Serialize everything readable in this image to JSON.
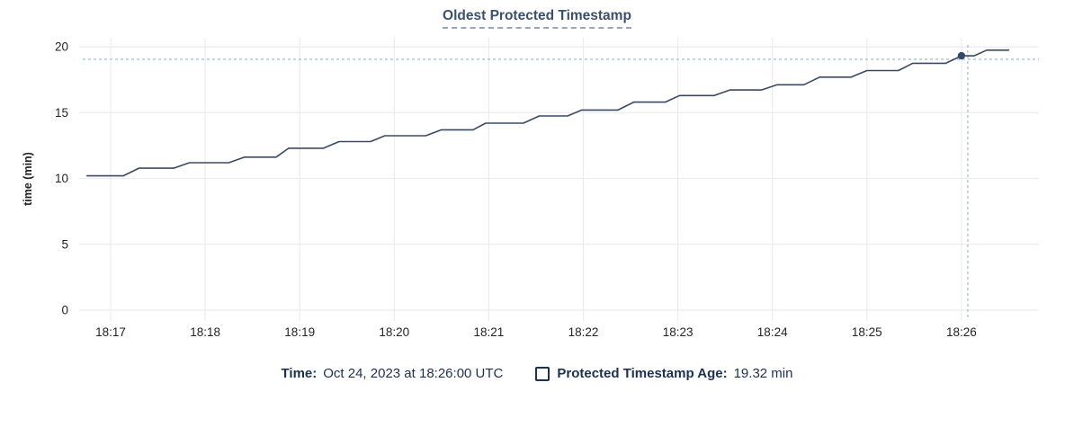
{
  "chart_data": {
    "type": "line",
    "title": "Oldest Protected Timestamp",
    "xlabel": "",
    "ylabel": "time (min)",
    "ylim": [
      0,
      20
    ],
    "yticks": [
      0,
      5,
      10,
      15,
      20
    ],
    "xtick_labels": [
      "18:17",
      "18:18",
      "18:19",
      "18:20",
      "18:21",
      "18:22",
      "18:23",
      "18:24",
      "18:25",
      "18:26"
    ],
    "x_unit": "seconds since 18:17:00",
    "grid": true,
    "legend_position": "bottom",
    "series": [
      {
        "name": "Protected Timestamp Age",
        "color": "#3b4a62",
        "points": [
          [
            -15,
            10.2
          ],
          [
            8,
            10.2
          ],
          [
            18,
            10.78
          ],
          [
            40,
            10.78
          ],
          [
            50,
            11.2
          ],
          [
            75,
            11.2
          ],
          [
            85,
            11.62
          ],
          [
            105,
            11.62
          ],
          [
            113,
            12.3
          ],
          [
            135,
            12.3
          ],
          [
            145,
            12.8
          ],
          [
            165,
            12.8
          ],
          [
            174,
            13.25
          ],
          [
            200,
            13.25
          ],
          [
            210,
            13.7
          ],
          [
            230,
            13.7
          ],
          [
            238,
            14.2
          ],
          [
            262,
            14.2
          ],
          [
            272,
            14.75
          ],
          [
            290,
            14.75
          ],
          [
            299,
            15.2
          ],
          [
            322,
            15.2
          ],
          [
            332,
            15.8
          ],
          [
            352,
            15.8
          ],
          [
            361,
            16.3
          ],
          [
            383,
            16.3
          ],
          [
            393,
            16.72
          ],
          [
            413,
            16.72
          ],
          [
            423,
            17.12
          ],
          [
            440,
            17.12
          ],
          [
            450,
            17.7
          ],
          [
            470,
            17.7
          ],
          [
            480,
            18.2
          ],
          [
            500,
            18.2
          ],
          [
            509,
            18.75
          ],
          [
            530,
            18.75
          ],
          [
            540,
            19.32
          ],
          [
            548,
            19.32
          ],
          [
            556,
            19.75
          ],
          [
            570,
            19.75
          ]
        ]
      }
    ],
    "hover": {
      "x_seconds": 540,
      "value": 19.32,
      "crosshair_seconds": 544,
      "crosshair_value": 19.05
    },
    "colors": {
      "series": "#3b4a62",
      "point": "#35466b",
      "grid": "#ececee",
      "crosshair": "#a5bac9",
      "axis_text": "#232428",
      "title": "#3b506b",
      "title_underline": "#9aa7bb",
      "legend_text": "#1c3150"
    }
  },
  "legend": {
    "time_label": "Time:",
    "time_value": "Oct 24, 2023 at 18:26:00 UTC",
    "series_label": "Protected Timestamp Age:",
    "series_value": "19.32 min"
  }
}
